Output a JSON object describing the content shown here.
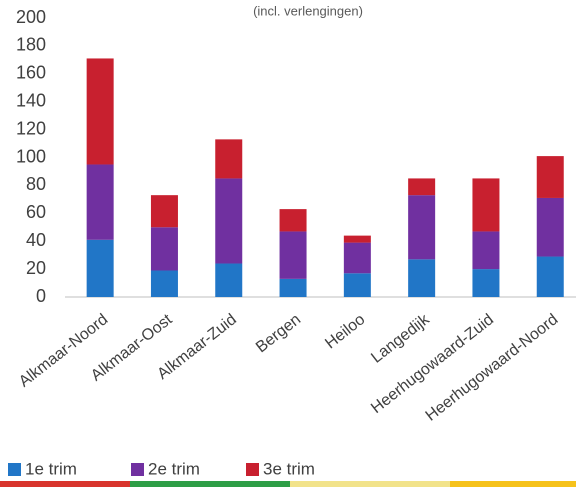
{
  "chart_data": {
    "type": "stacked_bar",
    "subtitle": "(incl. verlengingen)",
    "categories": [
      "Alkmaar-Noord",
      "Alkmaar-Oost",
      "Alkmaar-Zuid",
      "Bergen",
      "Heiloo",
      "Langedijk",
      "Heerhugowaard-Zuid",
      "Heerhugowaard-Noord"
    ],
    "series": [
      {
        "name": "1e trim",
        "color": "#2176c7",
        "values": [
          41,
          19,
          24,
          13,
          17,
          27,
          20,
          29
        ]
      },
      {
        "name": "2e trim",
        "color": "#7030a0",
        "values": [
          54,
          31,
          61,
          34,
          22,
          46,
          27,
          42
        ]
      },
      {
        "name": "3e trim",
        "color": "#c8202f",
        "values": [
          76,
          23,
          28,
          16,
          5,
          12,
          38,
          30
        ]
      }
    ],
    "ylim": [
      0,
      200
    ],
    "yticks": [
      0,
      20,
      40,
      60,
      80,
      100,
      120,
      140,
      160,
      180,
      200
    ],
    "grid": false
  }
}
